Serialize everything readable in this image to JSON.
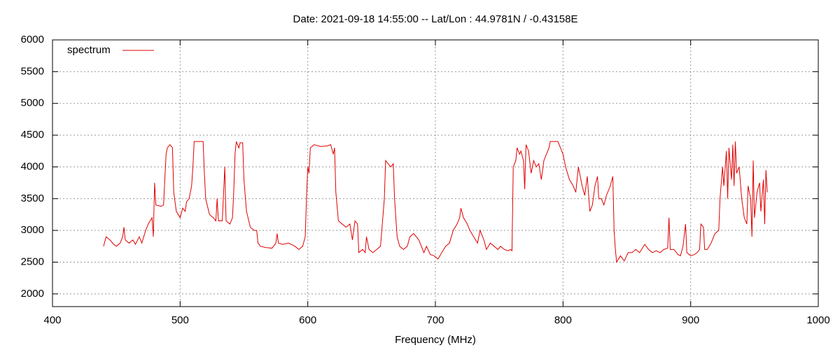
{
  "chart_data": {
    "type": "line",
    "title": "Date: 2021-09-18 14:55:00  --  Lat/Lon : 44.9781N / -0.43158E",
    "x_label": "Frequency (MHz)",
    "xlim": [
      400,
      1000
    ],
    "xticks": [
      400,
      500,
      600,
      700,
      800,
      900,
      1000
    ],
    "ylim": [
      1800,
      6000
    ],
    "yticks": [
      2000,
      2500,
      3000,
      3500,
      4000,
      4500,
      5000,
      5500,
      6000
    ],
    "grid": true,
    "legend": "top-left",
    "x": [
      440,
      442,
      445,
      448,
      450,
      453,
      455,
      456,
      457,
      460,
      463,
      465,
      468,
      470,
      473,
      475,
      478,
      479,
      480,
      481,
      485,
      487,
      488,
      489,
      490,
      492,
      494,
      495,
      497,
      500,
      502,
      504,
      505,
      507,
      509,
      510,
      511,
      518,
      519,
      520,
      523,
      526,
      528,
      529,
      530,
      533,
      535,
      536,
      539,
      541,
      542,
      543,
      544,
      546,
      547,
      549,
      550,
      552,
      555,
      558,
      560,
      561,
      563,
      567,
      572,
      575,
      576,
      577,
      580,
      585,
      590,
      593,
      596,
      598,
      599,
      600,
      601,
      602,
      605,
      610,
      615,
      618,
      620,
      621,
      622,
      624,
      627,
      630,
      633,
      635,
      637,
      639,
      640,
      643,
      645,
      646,
      648,
      651,
      654,
      657,
      658,
      660,
      661,
      663,
      665,
      667,
      668,
      670,
      672,
      675,
      678,
      680,
      683,
      685,
      687,
      689,
      691,
      693,
      696,
      699,
      702,
      705,
      708,
      711,
      714,
      717,
      719,
      720,
      722,
      725,
      727,
      730,
      733,
      735,
      738,
      740,
      743,
      746,
      749,
      751,
      754,
      757,
      759,
      760,
      761,
      763,
      764,
      766,
      767,
      769,
      770,
      771,
      773,
      775,
      777,
      779,
      781,
      783,
      785,
      787,
      789,
      790,
      796,
      798,
      800,
      802,
      805,
      808,
      810,
      812,
      815,
      817,
      819,
      821,
      823,
      825,
      827,
      828,
      830,
      832,
      834,
      837,
      839,
      840,
      841,
      842,
      845,
      848,
      851,
      854,
      857,
      860,
      864,
      867,
      870,
      873,
      876,
      879,
      882,
      883,
      884,
      887,
      890,
      892,
      894,
      896,
      897,
      900,
      903,
      905,
      907,
      908,
      910,
      911,
      913,
      916,
      919,
      922,
      923,
      925,
      926,
      928,
      929,
      930,
      932,
      933,
      934,
      935,
      936,
      938,
      940,
      942,
      944,
      945,
      947,
      948,
      949,
      950,
      952,
      954,
      955,
      957,
      958,
      959,
      960
    ],
    "series": [
      {
        "name": "spectrum",
        "color": "#e00000",
        "values": [
          2750,
          2900,
          2850,
          2780,
          2750,
          2800,
          2900,
          3050,
          2850,
          2800,
          2850,
          2780,
          2900,
          2800,
          3000,
          3100,
          3200,
          2900,
          3750,
          3400,
          3380,
          3400,
          3800,
          4200,
          4300,
          4350,
          4300,
          3600,
          3300,
          3200,
          3350,
          3300,
          3450,
          3500,
          3700,
          4000,
          4400,
          4400,
          3900,
          3500,
          3250,
          3200,
          3150,
          3500,
          3150,
          3150,
          4000,
          3150,
          3100,
          3200,
          3600,
          4200,
          4400,
          4300,
          4380,
          4380,
          3800,
          3300,
          3050,
          3000,
          3000,
          2800,
          2750,
          2730,
          2720,
          2800,
          2950,
          2800,
          2780,
          2800,
          2750,
          2700,
          2750,
          2900,
          3500,
          4000,
          3900,
          4300,
          4350,
          4320,
          4330,
          4350,
          4200,
          4300,
          3600,
          3150,
          3100,
          3050,
          3100,
          2850,
          3150,
          3100,
          2650,
          2700,
          2650,
          2900,
          2700,
          2650,
          2700,
          2750,
          3000,
          3500,
          4100,
          4050,
          4000,
          4050,
          3500,
          2900,
          2750,
          2700,
          2750,
          2900,
          2950,
          2900,
          2850,
          2750,
          2650,
          2750,
          2620,
          2600,
          2550,
          2650,
          2750,
          2800,
          3000,
          3100,
          3200,
          3350,
          3200,
          3100,
          3000,
          2900,
          2800,
          3000,
          2850,
          2700,
          2800,
          2750,
          2700,
          2750,
          2700,
          2680,
          2700,
          2680,
          4000,
          4100,
          4300,
          4200,
          4250,
          4100,
          3650,
          4350,
          4250,
          3900,
          4100,
          4000,
          4050,
          3800,
          4100,
          4200,
          4300,
          4400,
          4400,
          4300,
          4200,
          4000,
          3800,
          3700,
          3600,
          4000,
          3700,
          3550,
          3850,
          3300,
          3400,
          3700,
          3850,
          3500,
          3500,
          3400,
          3550,
          3700,
          3850,
          3000,
          2700,
          2500,
          2600,
          2520,
          2650,
          2650,
          2700,
          2650,
          2780,
          2700,
          2650,
          2680,
          2650,
          2700,
          2720,
          3200,
          2700,
          2700,
          2620,
          2600,
          2750,
          3100,
          2650,
          2600,
          2620,
          2650,
          2700,
          3100,
          3050,
          2700,
          2700,
          2800,
          2950,
          3000,
          3500,
          4000,
          3700,
          4250,
          3500,
          4300,
          3800,
          4350,
          3700,
          4400,
          3900,
          4000,
          3500,
          3200,
          3100,
          3700,
          3500,
          2900,
          4100,
          3200,
          3600,
          3750,
          3300,
          3800,
          3100,
          3950,
          3600
        ]
      }
    ]
  }
}
